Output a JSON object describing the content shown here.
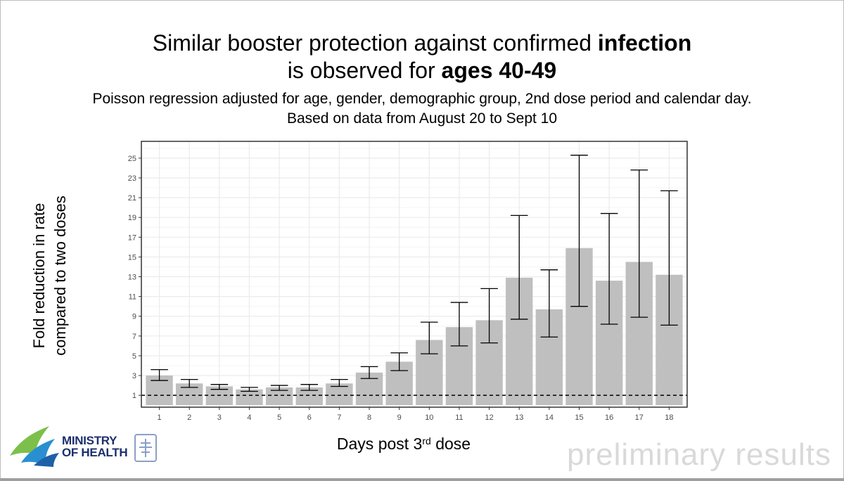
{
  "title_line1_plain": "Similar booster protection against confirmed ",
  "title_line1_bold": "infection",
  "title_line2_plain": "is observed for ",
  "title_line2_bold": "ages 40-49",
  "subtitle_line1": "Poisson regression adjusted for age, gender, demographic group, 2nd dose period and calendar day.",
  "subtitle_line2": "Based on data from August 20 to Sept 10",
  "watermark": "preliminary  results",
  "logo": {
    "line1": "MINISTRY",
    "line2": "OF HEALTH"
  },
  "colors": {
    "bar": "#bfbfbf",
    "errorbar": "#000000",
    "grid": "#ebebeb",
    "panel_border": "#333333",
    "reference_line": "#000000"
  },
  "chart_data": {
    "type": "bar",
    "xlabel_main": "Days post 3",
    "xlabel_sup": "rd",
    "xlabel_tail": " dose",
    "ylabel_line1": "Fold reduction in rate",
    "ylabel_line2": "compared to two doses",
    "categories": [
      "1",
      "2",
      "3",
      "4",
      "5",
      "6",
      "7",
      "8",
      "9",
      "10",
      "11",
      "12",
      "13",
      "14",
      "15",
      "16",
      "17",
      "18"
    ],
    "values": [
      3.0,
      2.2,
      1.9,
      1.6,
      1.8,
      1.8,
      2.2,
      3.3,
      4.4,
      6.6,
      7.9,
      8.6,
      12.9,
      9.7,
      15.9,
      12.6,
      14.5,
      13.2
    ],
    "ci_lower": [
      2.5,
      1.8,
      1.6,
      1.4,
      1.5,
      1.5,
      1.9,
      2.7,
      3.5,
      5.2,
      6.0,
      6.3,
      8.7,
      6.9,
      10.0,
      8.2,
      8.9,
      8.1
    ],
    "ci_upper": [
      3.6,
      2.6,
      2.1,
      1.8,
      2.0,
      2.1,
      2.6,
      3.9,
      5.3,
      8.4,
      10.4,
      11.8,
      19.2,
      13.7,
      25.3,
      19.4,
      23.8,
      21.7
    ],
    "reference_line": 1,
    "yticks": [
      1,
      3,
      5,
      7,
      9,
      11,
      13,
      15,
      17,
      19,
      21,
      23,
      25
    ],
    "ylim": [
      -0.2,
      26.7
    ],
    "grid": true
  }
}
